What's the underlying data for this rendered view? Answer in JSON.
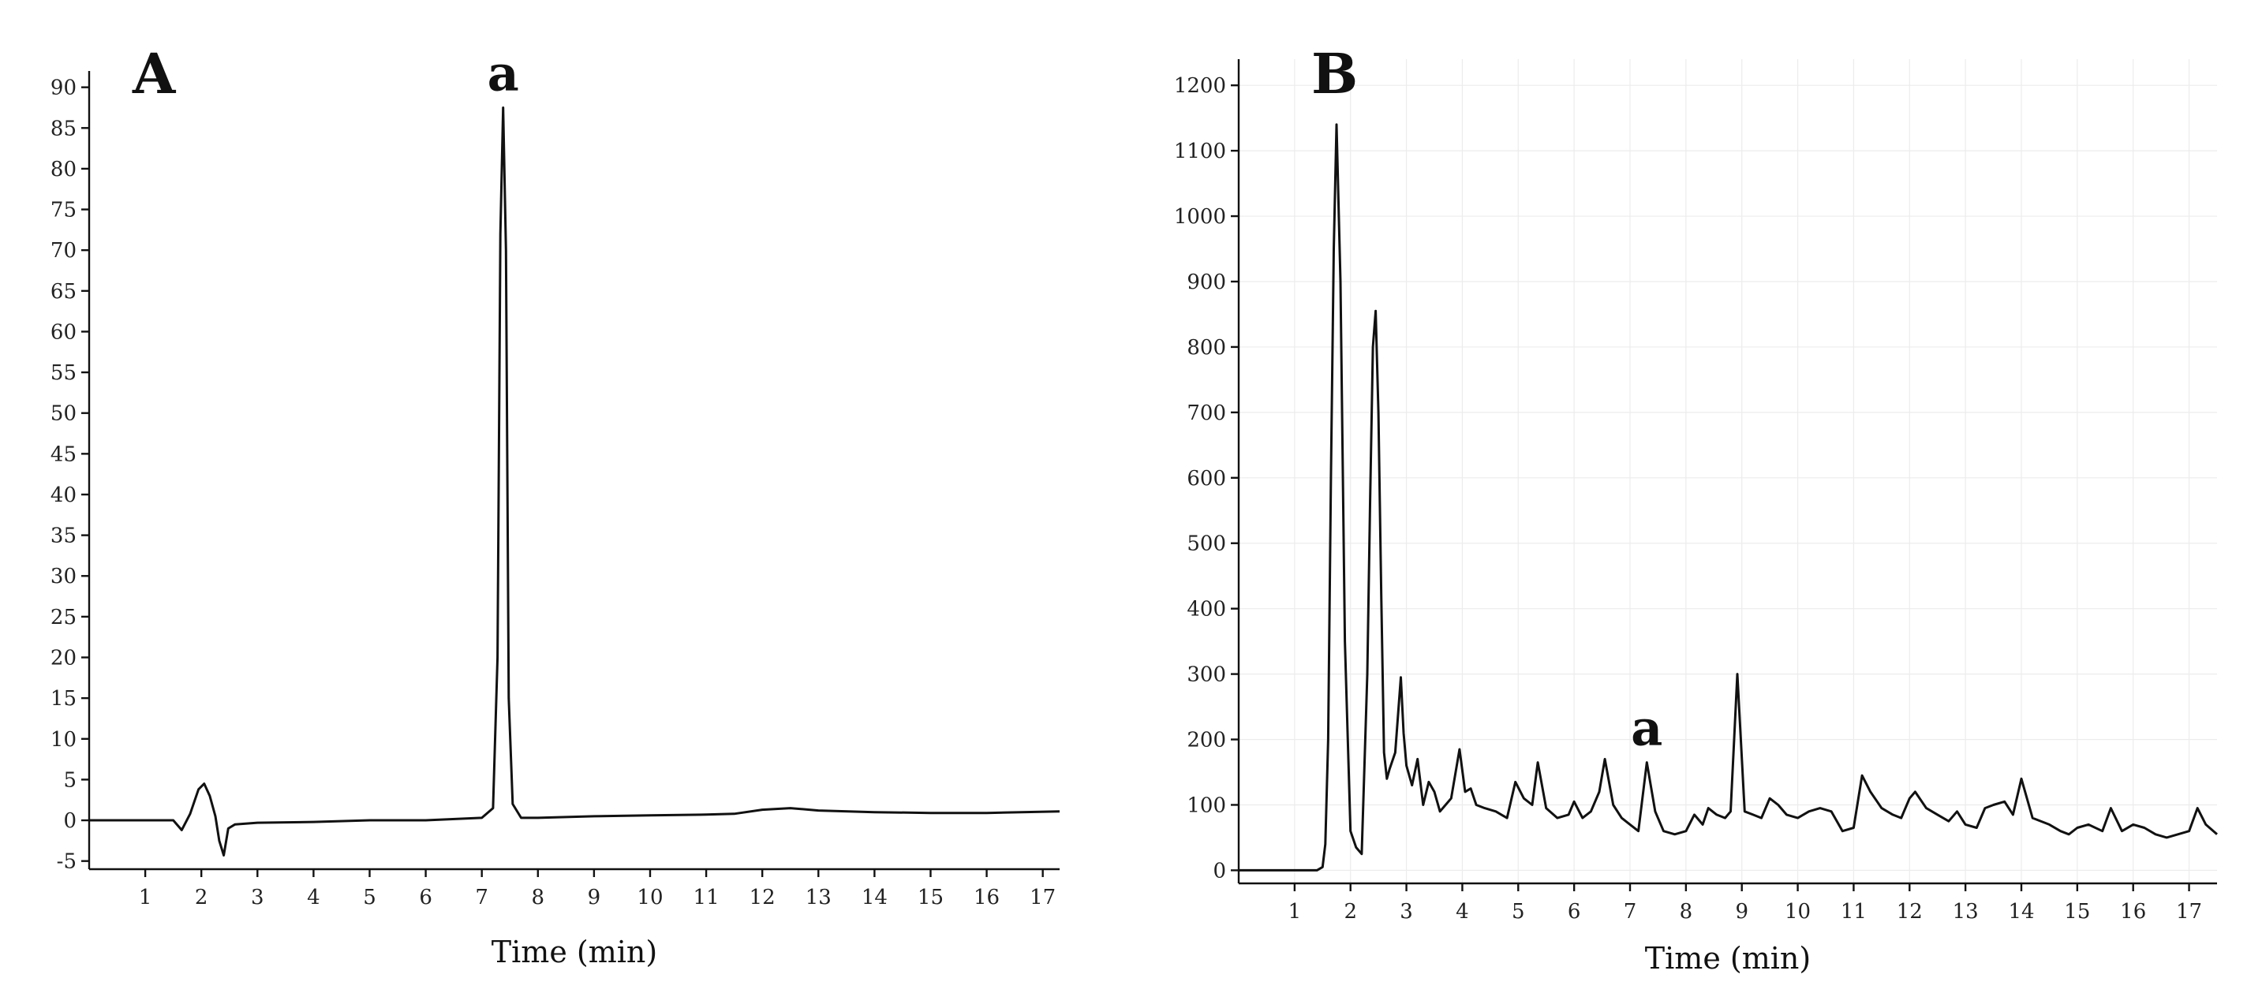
{
  "chart_data": [
    {
      "type": "line",
      "panel_label": "A",
      "xlabel": "Time (min)",
      "ylabel": "",
      "xlim": [
        0,
        17.3
      ],
      "ylim": [
        -6,
        92
      ],
      "xticks": [
        1,
        2,
        3,
        4,
        5,
        6,
        7,
        8,
        9,
        10,
        11,
        12,
        13,
        14,
        15,
        16,
        17
      ],
      "yticks": [
        -5,
        0,
        5,
        10,
        15,
        20,
        25,
        30,
        35,
        40,
        45,
        50,
        55,
        60,
        65,
        70,
        75,
        80,
        85,
        90
      ],
      "grid": false,
      "annotations": [
        {
          "text": "a",
          "x": 7.38,
          "y": 87.5
        }
      ],
      "series": [
        {
          "x": [
            0,
            1.5,
            1.65,
            1.8,
            1.95,
            2.05,
            2.15,
            2.25,
            2.32,
            2.4,
            2.48,
            2.6,
            3.0,
            4.0,
            5.0,
            6.0,
            7.0,
            7.2,
            7.28,
            7.33,
            7.38,
            7.43,
            7.48,
            7.55,
            7.7,
            8.0,
            9.0,
            10.0,
            11.0,
            11.5,
            12.0,
            12.5,
            13.0,
            14.0,
            15.0,
            16.0,
            17.3
          ],
          "y": [
            0,
            0,
            -1.2,
            0.8,
            3.8,
            4.5,
            3,
            0.5,
            -2.5,
            -4.3,
            -1,
            -0.5,
            -0.3,
            -0.2,
            0,
            0,
            0.3,
            1.5,
            20,
            72,
            87.5,
            70,
            15,
            2,
            0.3,
            0.3,
            0.5,
            0.6,
            0.7,
            0.8,
            1.3,
            1.5,
            1.2,
            1,
            0.9,
            0.9,
            1.1
          ]
        }
      ]
    },
    {
      "type": "line",
      "panel_label": "B",
      "xlabel": "Time (min)",
      "ylabel": "",
      "xlim": [
        0,
        17.5
      ],
      "ylim": [
        -20,
        1240
      ],
      "xticks": [
        1,
        2,
        3,
        4,
        5,
        6,
        7,
        8,
        9,
        10,
        11,
        12,
        13,
        14,
        15,
        16,
        17
      ],
      "yticks": [
        0,
        100,
        200,
        300,
        400,
        500,
        600,
        700,
        800,
        900,
        1000,
        1100,
        1200
      ],
      "grid": true,
      "annotations": [
        {
          "text": "a",
          "x": 7.3,
          "y": 165
        }
      ],
      "series": [
        {
          "x": [
            0,
            1.4,
            1.5,
            1.55,
            1.6,
            1.65,
            1.7,
            1.75,
            1.82,
            1.9,
            2.0,
            2.1,
            2.2,
            2.3,
            2.35,
            2.4,
            2.45,
            2.5,
            2.55,
            2.6,
            2.65,
            2.7,
            2.8,
            2.9,
            2.95,
            3.0,
            3.1,
            3.2,
            3.3,
            3.4,
            3.5,
            3.6,
            3.7,
            3.8,
            3.95,
            4.05,
            4.15,
            4.25,
            4.4,
            4.6,
            4.8,
            4.95,
            5.1,
            5.25,
            5.35,
            5.5,
            5.7,
            5.9,
            6.0,
            6.15,
            6.3,
            6.45,
            6.55,
            6.7,
            6.85,
            7.0,
            7.15,
            7.3,
            7.45,
            7.6,
            7.8,
            8.0,
            8.15,
            8.3,
            8.4,
            8.55,
            8.7,
            8.8,
            8.92,
            9.05,
            9.2,
            9.35,
            9.5,
            9.65,
            9.8,
            10.0,
            10.2,
            10.4,
            10.6,
            10.8,
            11.0,
            11.15,
            11.3,
            11.5,
            11.7,
            11.85,
            12.0,
            12.1,
            12.3,
            12.5,
            12.7,
            12.85,
            13.0,
            13.2,
            13.35,
            13.5,
            13.7,
            13.85,
            14.0,
            14.2,
            14.5,
            14.7,
            14.85,
            15.0,
            15.2,
            15.45,
            15.6,
            15.8,
            16.0,
            16.2,
            16.4,
            16.6,
            16.8,
            17.0,
            17.15,
            17.3,
            17.5
          ],
          "y": [
            0,
            0,
            5,
            40,
            200,
            600,
            950,
            1140,
            900,
            350,
            60,
            35,
            25,
            300,
            560,
            800,
            855,
            700,
            420,
            180,
            140,
            155,
            180,
            295,
            210,
            160,
            130,
            170,
            100,
            135,
            120,
            90,
            100,
            110,
            185,
            120,
            125,
            100,
            95,
            90,
            80,
            135,
            110,
            100,
            165,
            95,
            80,
            85,
            105,
            80,
            90,
            120,
            170,
            100,
            80,
            70,
            60,
            165,
            90,
            60,
            55,
            60,
            85,
            70,
            95,
            85,
            80,
            90,
            300,
            90,
            85,
            80,
            110,
            100,
            85,
            80,
            90,
            95,
            90,
            60,
            65,
            145,
            120,
            95,
            85,
            80,
            110,
            120,
            95,
            85,
            75,
            90,
            70,
            65,
            95,
            100,
            105,
            85,
            140,
            80,
            70,
            60,
            55,
            65,
            70,
            60,
            95,
            60,
            70,
            65,
            55,
            50,
            55,
            60,
            95,
            70,
            55
          ]
        }
      ]
    }
  ]
}
